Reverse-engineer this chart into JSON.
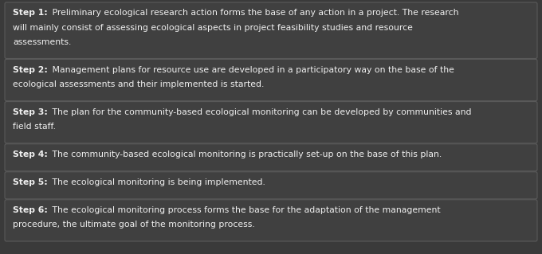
{
  "background_color": "#3a3a3a",
  "box_bg_color": "#404040",
  "box_border_color": "#5a5a5a",
  "text_color": "#f0f0f0",
  "steps": [
    {
      "label": "Step 1:",
      "lines": [
        "Preliminary ecological research action forms the base of any action in a project. The research",
        "will mainly consist of assessing ecological aspects in project feasibility studies and resource",
        "assessments."
      ]
    },
    {
      "label": "Step 2:",
      "lines": [
        "Management plans for resource use are developed in a participatory way on the base of the",
        "ecological assessments and their implemented is started."
      ]
    },
    {
      "label": "Step 3:",
      "lines": [
        "The plan for the community-based ecological monitoring can be developed by communities and",
        "field staff."
      ]
    },
    {
      "label": "Step 4:",
      "lines": [
        "The community-based ecological monitoring is practically set-up on the base of this plan."
      ]
    },
    {
      "label": "Step 5:",
      "lines": [
        "The ecological monitoring is being implemented."
      ]
    },
    {
      "label": "Step 6:",
      "lines": [
        "The ecological monitoring process forms the base for the adaptation of the management",
        "procedure, the ultimate goal of the monitoring process."
      ]
    }
  ],
  "fig_width": 6.8,
  "fig_height": 3.19,
  "dpi": 100,
  "font_size": 7.8
}
